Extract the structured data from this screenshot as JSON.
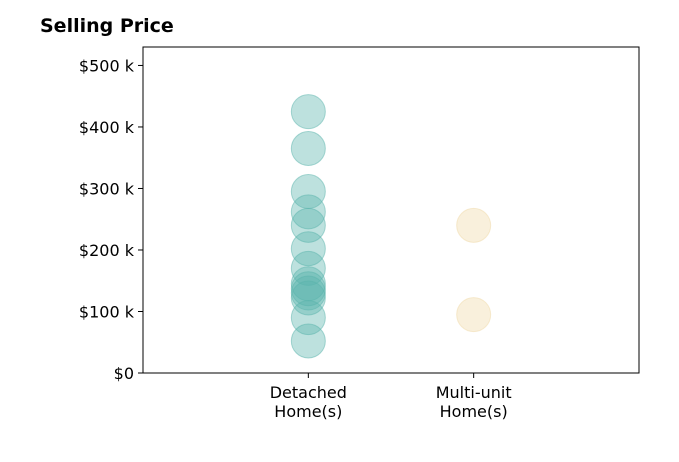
{
  "chart_data": {
    "type": "scatter",
    "title": "Selling Price",
    "xlabel": "",
    "ylabel": "",
    "categories": [
      "Detached\nHome(s)",
      "Multi-unit\nHome(s)"
    ],
    "ylim": [
      0,
      530000
    ],
    "y_ticks": [
      0,
      100000,
      200000,
      300000,
      400000,
      500000
    ],
    "y_tick_labels": [
      "$0",
      "$100 k",
      "$200 k",
      "$300 k",
      "$400 k",
      "$500 k"
    ],
    "grid": false,
    "legend": "none",
    "series": [
      {
        "category_index": 0,
        "color": "#5ab4ac",
        "values": [
          425000,
          365000,
          295000,
          262000,
          240000,
          202000,
          170000,
          145000,
          137000,
          130000,
          122000,
          90000,
          52000
        ]
      },
      {
        "category_index": 1,
        "color": "#f0d9a8",
        "values": [
          240000,
          95000
        ]
      }
    ]
  }
}
